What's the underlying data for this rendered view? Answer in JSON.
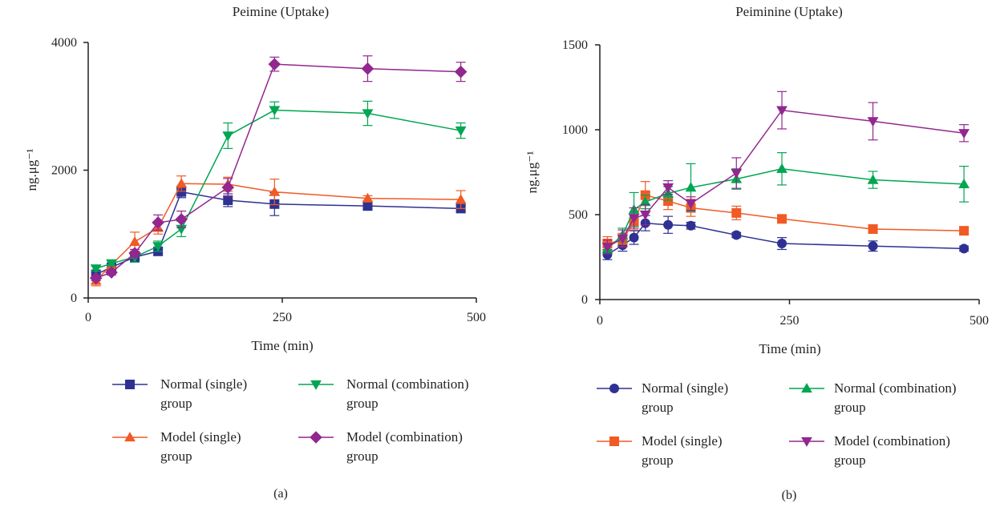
{
  "chart_data": [
    {
      "type": "line",
      "panel_label": "(a)",
      "title": "Peimine (Uptake)",
      "xlabel": "Time (min)",
      "ylabel": "ng.μg⁻¹",
      "xlim": [
        0,
        500
      ],
      "ylim": [
        0,
        4000
      ],
      "xticks": [
        "0",
        "250",
        "500"
      ],
      "yticks": [
        "0",
        "2000",
        "4000"
      ],
      "grid": false,
      "legend_position": "bottom",
      "x": [
        10,
        30,
        60,
        90,
        120,
        180,
        240,
        360,
        480
      ],
      "series": [
        {
          "name": "Normal (single) group",
          "color": "#2e3192",
          "marker": "square",
          "values": [
            370,
            480,
            640,
            730,
            1660,
            1530,
            1470,
            1440,
            1400
          ],
          "errors": [
            40,
            40,
            50,
            60,
            90,
            100,
            180,
            50,
            50
          ]
        },
        {
          "name": "Model (single) group",
          "color": "#f15a24",
          "marker": "triangle-up",
          "values": [
            270,
            520,
            880,
            1100,
            1790,
            1780,
            1660,
            1560,
            1540
          ],
          "errors": [
            80,
            60,
            150,
            100,
            120,
            110,
            200,
            40,
            140
          ]
        },
        {
          "name": "Normal (combination) group",
          "color": "#00a651",
          "marker": "triangle-down",
          "values": [
            460,
            540,
            640,
            810,
            1080,
            2540,
            2940,
            2890,
            2620
          ],
          "errors": [
            40,
            40,
            80,
            80,
            120,
            200,
            130,
            190,
            120
          ]
        },
        {
          "name": "Model (combination) group",
          "color": "#92278f",
          "marker": "diamond",
          "values": [
            310,
            400,
            700,
            1180,
            1230,
            1730,
            3660,
            3590,
            3540
          ],
          "errors": [
            40,
            40,
            60,
            120,
            130,
            140,
            110,
            200,
            150
          ]
        }
      ]
    },
    {
      "type": "line",
      "panel_label": "(b)",
      "title": "Peiminine (Uptake)",
      "xlabel": "Time (min)",
      "ylabel": "ng.μg⁻¹",
      "xlim": [
        0,
        500
      ],
      "ylim": [
        0,
        1500
      ],
      "xticks": [
        "0",
        "250",
        "500"
      ],
      "yticks": [
        "0",
        "500",
        "1000",
        "1500"
      ],
      "grid": false,
      "legend_position": "bottom",
      "x": [
        10,
        30,
        45,
        60,
        90,
        120,
        180,
        240,
        360,
        480
      ],
      "series": [
        {
          "name": "Normal (single) group",
          "color": "#2e3192",
          "marker": "circle",
          "values": [
            265,
            320,
            365,
            450,
            440,
            435,
            380,
            330,
            315,
            300
          ],
          "errors": [
            30,
            35,
            40,
            45,
            50,
            20,
            15,
            35,
            30,
            15
          ]
        },
        {
          "name": "Model (single) group",
          "color": "#f15a24",
          "marker": "square",
          "values": [
            330,
            350,
            460,
            615,
            580,
            540,
            510,
            475,
            415,
            405
          ],
          "errors": [
            40,
            40,
            50,
            80,
            50,
            50,
            40,
            20,
            25,
            15
          ]
        },
        {
          "name": "Normal (combination) group",
          "color": "#00a651",
          "marker": "triangle-up",
          "values": [
            300,
            380,
            530,
            575,
            625,
            660,
            710,
            770,
            705,
            680
          ],
          "errors": [
            30,
            40,
            100,
            40,
            40,
            140,
            60,
            95,
            50,
            105
          ]
        },
        {
          "name": "Model (combination) group",
          "color": "#92278f",
          "marker": "triangle-down",
          "values": [
            310,
            360,
            480,
            500,
            660,
            565,
            745,
            1115,
            1050,
            980
          ],
          "errors": [
            40,
            50,
            60,
            60,
            40,
            40,
            90,
            110,
            110,
            50
          ]
        }
      ]
    }
  ]
}
